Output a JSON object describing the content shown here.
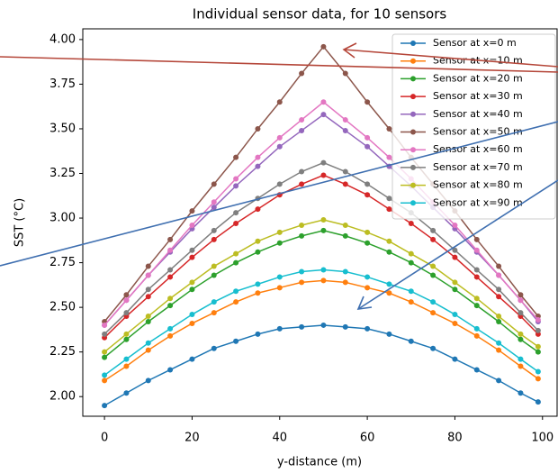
{
  "chart_data": {
    "type": "line",
    "title": "Individual sensor data, for 10 sensors",
    "x_label": "y-distance (m)",
    "y_label": "SST (°C)",
    "x": [
      0,
      5,
      10,
      15,
      20,
      25,
      30,
      35,
      40,
      45,
      50,
      55,
      60,
      65,
      70,
      75,
      80,
      85,
      90,
      95,
      99
    ],
    "series": [
      {
        "name": "Sensor at x=0 m",
        "color": "#1f77b4",
        "values": [
          1.95,
          2.02,
          2.09,
          2.15,
          2.21,
          2.27,
          2.31,
          2.35,
          2.38,
          2.39,
          2.4,
          2.39,
          2.38,
          2.35,
          2.31,
          2.27,
          2.21,
          2.15,
          2.09,
          2.02,
          1.97
        ]
      },
      {
        "name": "Sensor at x=10 m",
        "color": "#ff7f0e",
        "values": [
          2.09,
          2.17,
          2.26,
          2.34,
          2.41,
          2.47,
          2.53,
          2.58,
          2.61,
          2.64,
          2.65,
          2.64,
          2.61,
          2.58,
          2.53,
          2.47,
          2.41,
          2.34,
          2.26,
          2.17,
          2.1
        ]
      },
      {
        "name": "Sensor at x=20 m",
        "color": "#2ca02c",
        "values": [
          2.22,
          2.32,
          2.42,
          2.51,
          2.6,
          2.68,
          2.75,
          2.81,
          2.86,
          2.9,
          2.93,
          2.9,
          2.86,
          2.81,
          2.75,
          2.68,
          2.6,
          2.51,
          2.42,
          2.32,
          2.25
        ]
      },
      {
        "name": "Sensor at x=30 m",
        "color": "#d62728",
        "values": [
          2.33,
          2.45,
          2.56,
          2.67,
          2.78,
          2.88,
          2.97,
          3.05,
          3.13,
          3.19,
          3.24,
          3.19,
          3.13,
          3.05,
          2.97,
          2.88,
          2.78,
          2.67,
          2.56,
          2.45,
          2.35
        ]
      },
      {
        "name": "Sensor at x=40 m",
        "color": "#9467bd",
        "values": [
          2.4,
          2.54,
          2.68,
          2.81,
          2.94,
          3.06,
          3.18,
          3.29,
          3.4,
          3.49,
          3.58,
          3.49,
          3.4,
          3.29,
          3.18,
          3.06,
          2.94,
          2.81,
          2.68,
          2.54,
          2.42
        ]
      },
      {
        "name": "Sensor at x=50 m",
        "color": "#8c564b",
        "values": [
          2.42,
          2.57,
          2.73,
          2.88,
          3.04,
          3.19,
          3.34,
          3.5,
          3.65,
          3.81,
          3.96,
          3.81,
          3.65,
          3.5,
          3.34,
          3.19,
          3.04,
          2.88,
          2.73,
          2.57,
          2.45
        ]
      },
      {
        "name": "Sensor at x=60 m",
        "color": "#e377c2",
        "values": [
          2.4,
          2.54,
          2.68,
          2.82,
          2.96,
          3.09,
          3.22,
          3.34,
          3.45,
          3.55,
          3.65,
          3.55,
          3.45,
          3.34,
          3.22,
          3.09,
          2.96,
          2.82,
          2.68,
          2.54,
          2.43
        ]
      },
      {
        "name": "Sensor at x=70 m",
        "color": "#7f7f7f",
        "values": [
          2.35,
          2.47,
          2.6,
          2.71,
          2.82,
          2.93,
          3.03,
          3.11,
          3.19,
          3.26,
          3.31,
          3.26,
          3.19,
          3.11,
          3.03,
          2.93,
          2.82,
          2.71,
          2.6,
          2.47,
          2.37
        ]
      },
      {
        "name": "Sensor at x=80 m",
        "color": "#bcbd22",
        "values": [
          2.25,
          2.35,
          2.45,
          2.55,
          2.64,
          2.73,
          2.8,
          2.87,
          2.92,
          2.96,
          2.99,
          2.96,
          2.92,
          2.87,
          2.8,
          2.73,
          2.64,
          2.55,
          2.45,
          2.35,
          2.28
        ]
      },
      {
        "name": "Sensor at x=90 m",
        "color": "#17becf",
        "values": [
          2.12,
          2.21,
          2.3,
          2.38,
          2.46,
          2.53,
          2.59,
          2.63,
          2.67,
          2.7,
          2.71,
          2.7,
          2.67,
          2.63,
          2.59,
          2.53,
          2.46,
          2.38,
          2.3,
          2.21,
          2.14
        ]
      }
    ],
    "xlim": [
      -4.95,
      103.95
    ],
    "ylim": [
      1.89,
      4.06
    ],
    "xticks": [
      0,
      20,
      40,
      60,
      80,
      100
    ],
    "yticks": [
      {
        "value": 2,
        "label": "2.00"
      },
      {
        "value": 2.25,
        "label": "2.25"
      },
      {
        "value": 2.5,
        "label": "2.50"
      },
      {
        "value": 2.75,
        "label": "2.75"
      },
      {
        "value": 3,
        "label": "3.00"
      },
      {
        "value": 3.25,
        "label": "3.25"
      },
      {
        "value": 3.5,
        "label": "3.50"
      },
      {
        "value": 3.75,
        "label": "3.75"
      },
      {
        "value": 4,
        "label": "4.00"
      }
    ],
    "grid": false,
    "legend": "upper right"
  }
}
